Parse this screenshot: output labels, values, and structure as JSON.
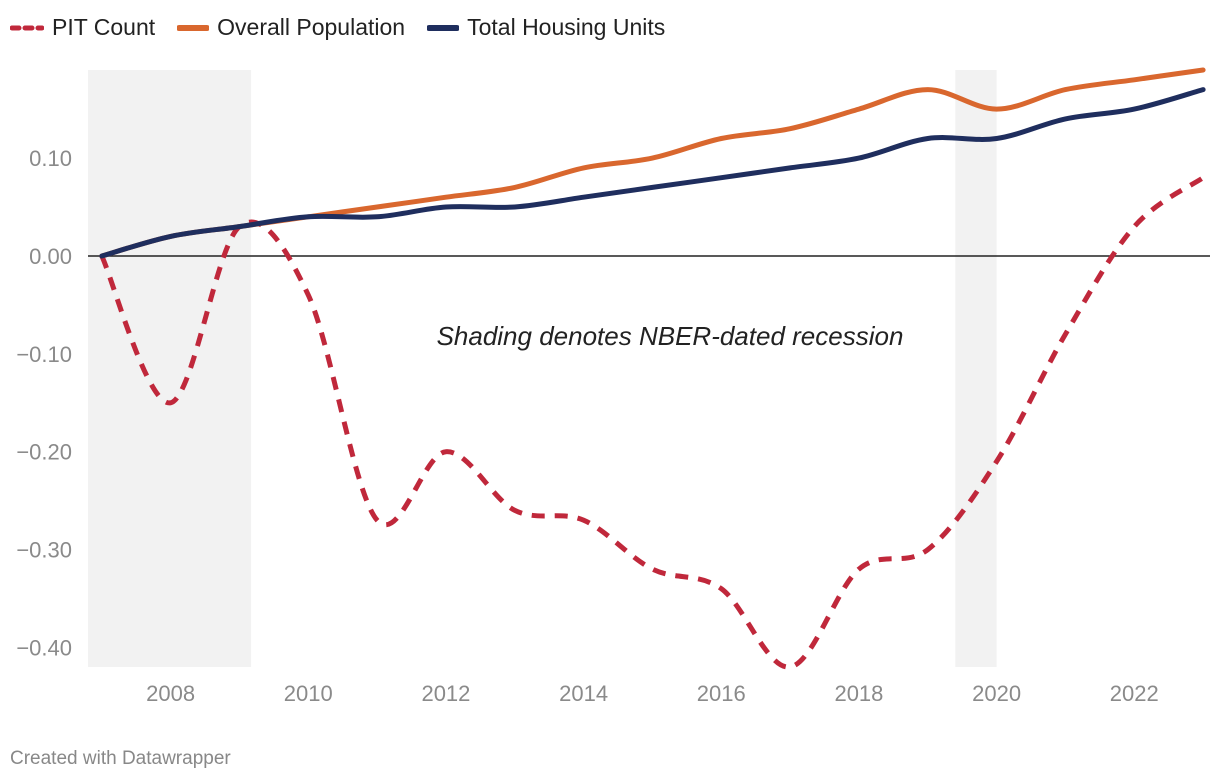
{
  "chart_data": {
    "type": "line",
    "title": "",
    "xlabel": "",
    "ylabel": "",
    "x": [
      2007,
      2008,
      2009,
      2010,
      2011,
      2012,
      2013,
      2014,
      2015,
      2016,
      2017,
      2018,
      2019,
      2020,
      2021,
      2022,
      2023
    ],
    "xlim": [
      2006.8,
      2023.1
    ],
    "ylim": [
      -0.42,
      0.19
    ],
    "x_ticks": [
      "2008",
      "2010",
      "2012",
      "2014",
      "2016",
      "2018",
      "2020",
      "2022"
    ],
    "x_tick_values": [
      2008,
      2010,
      2012,
      2014,
      2016,
      2018,
      2020,
      2022
    ],
    "y_ticks": [
      "0.10",
      "0.00",
      "−0.10",
      "−0.20",
      "−0.30",
      "−0.40"
    ],
    "y_tick_values": [
      0.1,
      0.0,
      -0.1,
      -0.2,
      -0.3,
      -0.4
    ],
    "recessions": [
      [
        2006.8,
        2009.17
      ],
      [
        2019.4,
        2020.0
      ]
    ],
    "annotation": "Shading denotes NBER-dated recession",
    "series": [
      {
        "name": "PIT Count",
        "style": "dashed",
        "color": "#c0283b",
        "values": [
          0.0,
          -0.15,
          0.03,
          -0.04,
          -0.27,
          -0.2,
          -0.26,
          -0.27,
          -0.32,
          -0.34,
          -0.42,
          -0.32,
          -0.3,
          -0.21,
          -0.08,
          0.03,
          0.08
        ]
      },
      {
        "name": "Overall Population",
        "style": "solid",
        "color": "#d9672e",
        "values": [
          0.0,
          0.02,
          0.03,
          0.04,
          0.05,
          0.06,
          0.07,
          0.09,
          0.1,
          0.12,
          0.13,
          0.15,
          0.17,
          0.15,
          0.17,
          0.18,
          0.19
        ]
      },
      {
        "name": "Total Housing Units",
        "style": "solid",
        "color": "#1f2e5e",
        "values": [
          0.0,
          0.02,
          0.03,
          0.04,
          0.04,
          0.05,
          0.05,
          0.06,
          0.07,
          0.08,
          0.09,
          0.1,
          0.12,
          0.12,
          0.14,
          0.15,
          0.17
        ]
      }
    ]
  },
  "legend": {
    "items": [
      {
        "label": "PIT Count",
        "color": "#c0283b"
      },
      {
        "label": "Overall Population",
        "color": "#d9672e"
      },
      {
        "label": "Total Housing Units",
        "color": "#1f2e5e"
      }
    ]
  },
  "colors": {
    "recession_shade": "#f2f2f2",
    "axis_text": "#8a8a8a",
    "zero_line": "#222222"
  },
  "footer": {
    "credit": "Created with Datawrapper"
  }
}
